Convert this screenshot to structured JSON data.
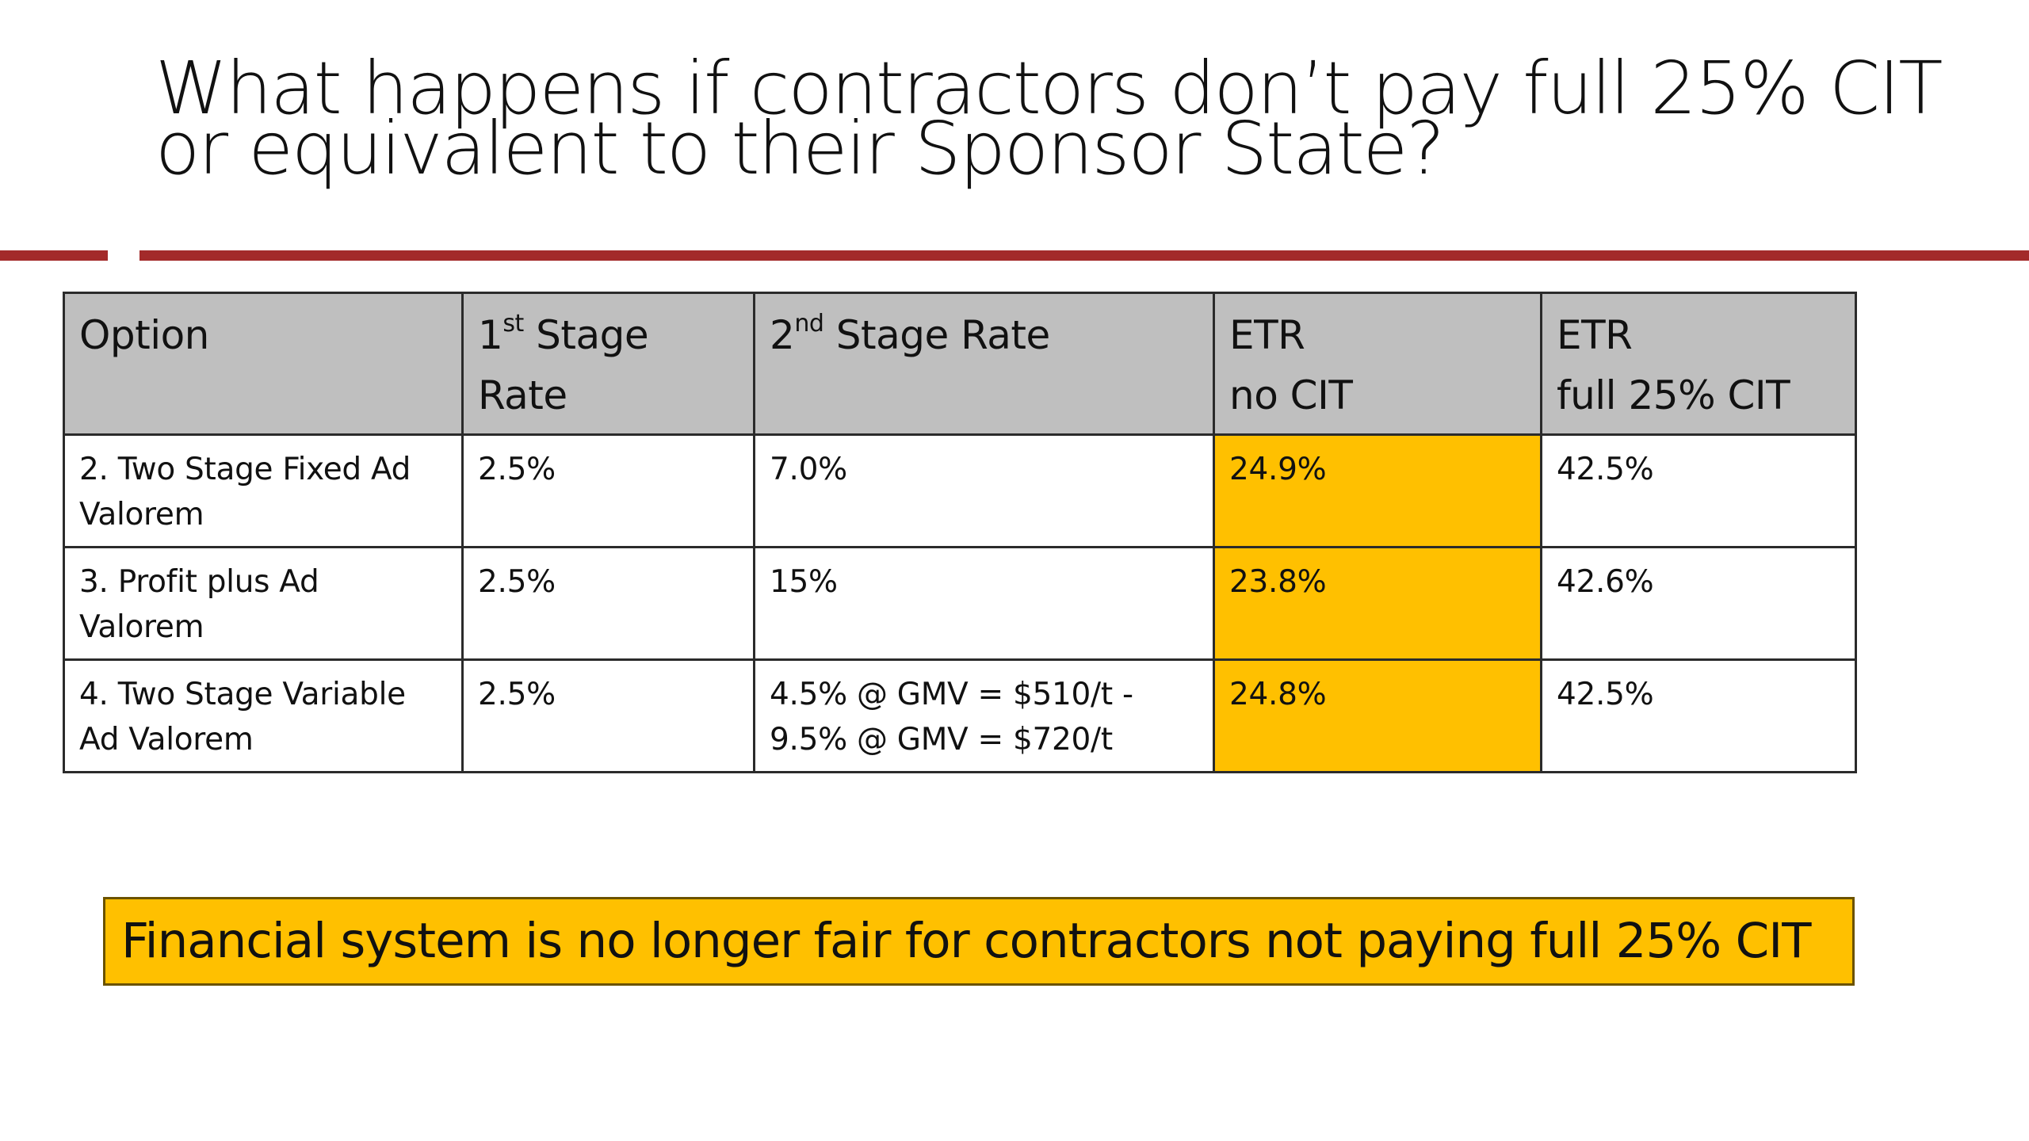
{
  "slide": {
    "title_line1": "What happens if contractors don’t pay full 25% CIT",
    "title_line2": "or equivalent to their Sponsor State?"
  },
  "colors": {
    "rule": "#a32a2a",
    "header_fill": "#bfbfbf",
    "highlight": "#ffc000",
    "callout_fill": "#ffc000"
  },
  "table": {
    "headers": {
      "option": "Option",
      "stage1_num": "1",
      "stage1_sup": "st",
      "stage1_line1_rest": " Stage",
      "stage1_line2": "Rate",
      "stage2_num": "2",
      "stage2_sup": "nd",
      "stage2_rest": " Stage Rate",
      "etr_no_cit_line1": "ETR",
      "etr_no_cit_line2": "no CIT",
      "etr_full_line1": "ETR",
      "etr_full_line2": "full 25% CIT"
    },
    "rows": [
      {
        "option_line1": "2. Two Stage Fixed Ad",
        "option_line2": "Valorem",
        "stage1": "2.5%",
        "stage2_line1": "7.0%",
        "stage2_line2": "",
        "etr_no_cit": "24.9%",
        "etr_full_cit": "42.5%"
      },
      {
        "option_line1": "3. Profit plus Ad",
        "option_line2": "Valorem",
        "stage1": "2.5%",
        "stage2_line1": "15%",
        "stage2_line2": "",
        "etr_no_cit": "23.8%",
        "etr_full_cit": "42.6%"
      },
      {
        "option_line1": "4. Two Stage Variable",
        "option_line2": "Ad Valorem",
        "stage1": "2.5%",
        "stage2_line1": "4.5% @ GMV = $510/t -",
        "stage2_line2": "9.5% @ GMV = $720/t",
        "etr_no_cit": "24.8%",
        "etr_full_cit": "42.5%"
      }
    ]
  },
  "callout": {
    "text": "Financial system is no longer fair for contractors not paying full 25% CIT"
  }
}
